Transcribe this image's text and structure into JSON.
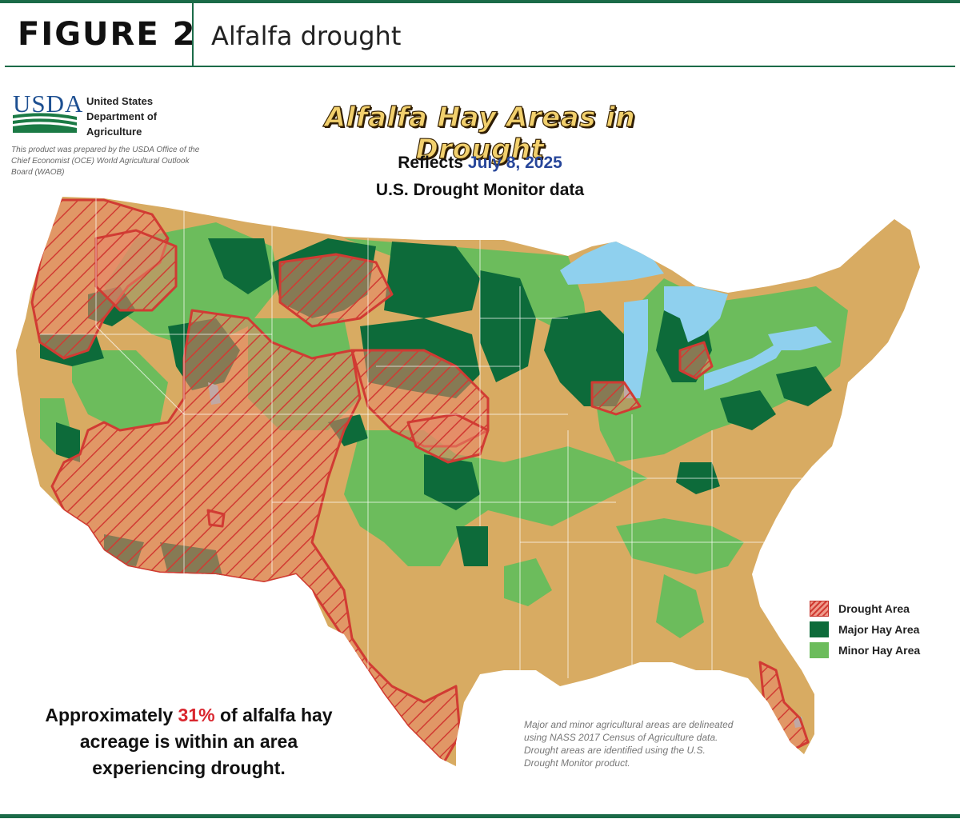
{
  "header": {
    "figure_label": "FIGURE 2",
    "figure_title": "Alfalfa drought"
  },
  "usda": {
    "logo_text": "USDA",
    "name": "United States Department of Agriculture",
    "note": "This product was prepared by the USDA Office of the Chief Economist (OCE) World Agricultural Outlook Board (WAOB)"
  },
  "map": {
    "title": "Alfalfa Hay Areas in Drought",
    "reflects_label": "Reflects",
    "date": "July 8, 2025",
    "source_line": "U.S. Drought Monitor data"
  },
  "legend": [
    {
      "label": "Drought Area",
      "color": "#d13b33"
    },
    {
      "label": "Major Hay Area",
      "color": "#0d6b3a"
    },
    {
      "label": "Minor Hay Area",
      "color": "#6cbc5c"
    }
  ],
  "stat": {
    "prefix": "Approximately",
    "percent": "31%",
    "suffix": "of alfalfa hay acreage is within an area experiencing drought."
  },
  "notes": "Major and minor agricultural areas are delineated using NASS 2017 Census of Agriculture data.  Drought areas are identified using the U.S. Drought Monitor product.",
  "colors": {
    "background_land": "#d8ab62",
    "major_hay": "#0d6b3a",
    "minor_hay": "#6cbc5c",
    "drought": "#d13b33",
    "water": "#8fd0ee",
    "rule": "#1b6b48"
  }
}
